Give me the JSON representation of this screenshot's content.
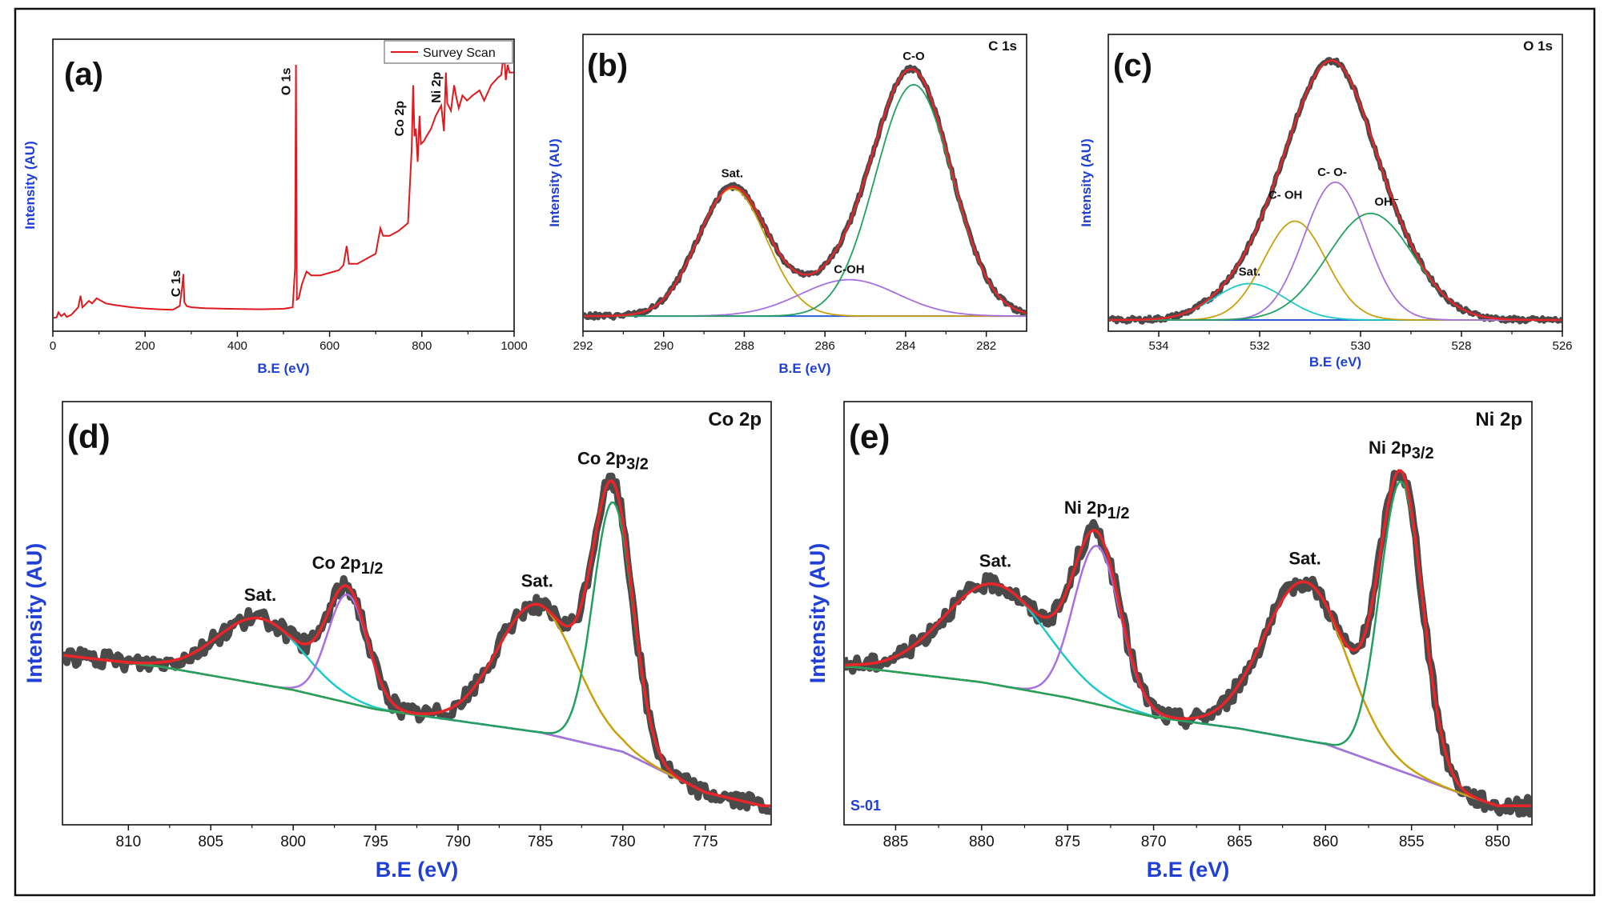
{
  "colors": {
    "axis_title": "#1f3fd6",
    "experimental": "#4a4a4a",
    "envelope": "#e8262a",
    "survey": "#e0191e",
    "gold": "#c9a00c",
    "green": "#23a060",
    "purple": "#a76fe0",
    "cyan": "#1fc8c8",
    "baseline_blue": "#2a5fd8"
  },
  "chart_data": [
    {
      "id": "a",
      "panel_label": "(a)",
      "title": "",
      "type": "line",
      "xlabel": "B.E (eV)",
      "ylabel": "Intensity (AU)",
      "xlim": [
        0,
        1000
      ],
      "ylim": [
        0,
        100
      ],
      "xticks": [
        0,
        200,
        400,
        600,
        800,
        1000
      ],
      "legend": {
        "position": "top-right",
        "entries": [
          "Survey Scan"
        ]
      },
      "series": [
        {
          "name": "Survey Scan",
          "color": "#e0191e",
          "points": [
            [
              0,
              0.8
            ],
            [
              8,
              1.0
            ],
            [
              12,
              3
            ],
            [
              18,
              1.5
            ],
            [
              25,
              2.5
            ],
            [
              30,
              1.2
            ],
            [
              40,
              2.0
            ],
            [
              55,
              5
            ],
            [
              60,
              9.5
            ],
            [
              64,
              5
            ],
            [
              70,
              6
            ],
            [
              78,
              7.5
            ],
            [
              85,
              6.5
            ],
            [
              95,
              8.5
            ],
            [
              105,
              7.5
            ],
            [
              115,
              6.5
            ],
            [
              130,
              6.0
            ],
            [
              150,
              5.5
            ],
            [
              170,
              5.0
            ],
            [
              200,
              4.5
            ],
            [
              230,
              4.2
            ],
            [
              260,
              4.0
            ],
            [
              275,
              5.5
            ],
            [
              280,
              12.5
            ],
            [
              283,
              18
            ],
            [
              285,
              7
            ],
            [
              290,
              5.5
            ],
            [
              300,
              5.0
            ],
            [
              330,
              4.6
            ],
            [
              380,
              4.4
            ],
            [
              450,
              4.2
            ],
            [
              500,
              4.4
            ],
            [
              520,
              5
            ],
            [
              525,
              20
            ],
            [
              527,
              100
            ],
            [
              529,
              8
            ],
            [
              533,
              8.5
            ],
            [
              540,
              14
            ],
            [
              550,
              19
            ],
            [
              560,
              17.5
            ],
            [
              580,
              17.5
            ],
            [
              600,
              18.5
            ],
            [
              620,
              19.5
            ],
            [
              630,
              21.5
            ],
            [
              637,
              29
            ],
            [
              642,
              22
            ],
            [
              660,
              22
            ],
            [
              680,
              24
            ],
            [
              700,
              26
            ],
            [
              710,
              36
            ],
            [
              716,
              33
            ],
            [
              730,
              33
            ],
            [
              750,
              35
            ],
            [
              770,
              38
            ],
            [
              778,
              67
            ],
            [
              781,
              92
            ],
            [
              784,
              72
            ],
            [
              787,
              75
            ],
            [
              791,
              62
            ],
            [
              795,
              80
            ],
            [
              798,
              69
            ],
            [
              804,
              70
            ],
            [
              810,
              72
            ],
            [
              820,
              75
            ],
            [
              830,
              80
            ],
            [
              842,
              84
            ],
            [
              848,
              74
            ],
            [
              852,
              97
            ],
            [
              855,
              85
            ],
            [
              863,
              82
            ],
            [
              870,
              92
            ],
            [
              875,
              87
            ],
            [
              880,
              83
            ],
            [
              888,
              88
            ],
            [
              898,
              86
            ],
            [
              910,
              88
            ],
            [
              925,
              90
            ],
            [
              935,
              86
            ],
            [
              950,
              92
            ],
            [
              965,
              95
            ],
            [
              972,
              96
            ],
            [
              978,
              105
            ],
            [
              982,
              94
            ],
            [
              986,
              100
            ],
            [
              990,
              97
            ],
            [
              1000,
              97
            ]
          ]
        }
      ],
      "annotations": [
        "C 1s",
        "O 1s",
        "Co 2p",
        "Ni 2p"
      ]
    },
    {
      "id": "b",
      "panel_label": "(b)",
      "title": "C 1s",
      "type": "line",
      "xlabel": "B.E (eV)",
      "ylabel": "Intensity (AU)",
      "xlim": [
        292,
        281
      ],
      "ylim": [
        0,
        100
      ],
      "xticks": [
        292,
        290,
        288,
        286,
        284,
        282
      ],
      "components": [
        {
          "label": "Sat.",
          "color": "#c9a00c",
          "center": 288.3,
          "amplitude": 49,
          "sigma": 0.85
        },
        {
          "label": "C-OH",
          "color": "#a76fe0",
          "center": 285.4,
          "amplitude": 14,
          "sigma": 1.2
        },
        {
          "label": "C-O",
          "color": "#23a060",
          "center": 283.8,
          "amplitude": 89,
          "sigma": 0.95
        }
      ],
      "baseline": 1.5,
      "annotations": [
        "Sat.",
        "C-OH",
        "C-O"
      ]
    },
    {
      "id": "c",
      "panel_label": "(c)",
      "title": "O 1s",
      "type": "line",
      "xlabel": "B.E (eV)",
      "ylabel": "Intensity (AU)",
      "xlim": [
        535,
        526
      ],
      "ylim": [
        0,
        100
      ],
      "xticks": [
        534,
        532,
        530,
        528,
        526
      ],
      "components": [
        {
          "label": "Sat.",
          "color": "#1fc8c8",
          "center": 532.2,
          "amplitude": 14,
          "sigma": 0.7
        },
        {
          "label": "C- OH",
          "color": "#c9a00c",
          "center": 531.3,
          "amplitude": 38,
          "sigma": 0.62
        },
        {
          "label": "C- O-",
          "color": "#a76fe0",
          "center": 530.5,
          "amplitude": 53,
          "sigma": 0.62
        },
        {
          "label": "OH⁻",
          "color": "#23a060",
          "center": 529.8,
          "amplitude": 41,
          "sigma": 0.85
        }
      ],
      "baseline": 0,
      "annotations": [
        "Sat.",
        "C- OH",
        "C- O-",
        "OH⁻"
      ]
    },
    {
      "id": "d",
      "panel_label": "(d)",
      "title": "Co 2p",
      "type": "line",
      "xlabel": "B.E (eV)",
      "ylabel": "Intensity (AU)",
      "xlim": [
        814,
        771
      ],
      "ylim": [
        0,
        100
      ],
      "xticks": [
        810,
        805,
        800,
        795,
        790,
        785,
        780,
        775
      ],
      "baseline_points": [
        [
          814,
          41
        ],
        [
          808,
          38
        ],
        [
          800,
          32
        ],
        [
          795,
          27
        ],
        [
          790,
          24
        ],
        [
          785,
          21
        ],
        [
          780,
          16
        ],
        [
          775,
          5.5
        ],
        [
          771.5,
          2
        ]
      ],
      "components": [
        {
          "label": "Sat.",
          "color": "#1fc8c8",
          "center": 802.0,
          "amplitude": 17,
          "sigma": 2.6
        },
        {
          "label": "Co 2p1/2",
          "color": "#a76fe0",
          "center": 796.7,
          "amplitude": 28,
          "sigma": 1.2
        },
        {
          "label": "Sat.",
          "color": "#c9a00c",
          "center": 785.2,
          "amplitude": 33,
          "sigma": 2.4
        },
        {
          "label": "Co 2p3/2",
          "color": "#23a060",
          "center": 780.6,
          "amplitude": 64,
          "sigma": 1.2
        }
      ],
      "annotations": [
        "Sat.",
        "Co 2p1/2",
        "Sat.",
        "Co 2p3/2"
      ]
    },
    {
      "id": "e",
      "panel_label": "(e)",
      "title": "Ni 2p",
      "type": "line",
      "xlabel": "B.E (eV)",
      "ylabel": "Intensity (AU)",
      "xlim": [
        888,
        848
      ],
      "ylim": [
        0,
        100
      ],
      "xticks": [
        885,
        880,
        875,
        870,
        865,
        860,
        855,
        850
      ],
      "baseline_points": [
        [
          887.5,
          38
        ],
        [
          880,
          34
        ],
        [
          875,
          30
        ],
        [
          870,
          25
        ],
        [
          865,
          22
        ],
        [
          860,
          18
        ],
        [
          855,
          10
        ],
        [
          852,
          5
        ],
        [
          850,
          2
        ]
      ],
      "components": [
        {
          "label": "Sat.",
          "color": "#1fc8c8",
          "center": 879.2,
          "amplitude": 26,
          "sigma": 3.0
        },
        {
          "label": "Ni 2p1/2",
          "color": "#a76fe0",
          "center": 873.3,
          "amplitude": 41,
          "sigma": 1.35
        },
        {
          "label": "Sat.",
          "color": "#c9a00c",
          "center": 861.2,
          "amplitude": 41,
          "sigma": 2.4
        },
        {
          "label": "Ni 2p3/2",
          "color": "#23a060",
          "center": 855.6,
          "amplitude": 75,
          "sigma": 1.25
        }
      ],
      "annotations": [
        "Sat.",
        "Ni 2p1/2",
        "Sat.",
        "Ni 2p3/2"
      ],
      "sample_id": "S-01"
    }
  ]
}
